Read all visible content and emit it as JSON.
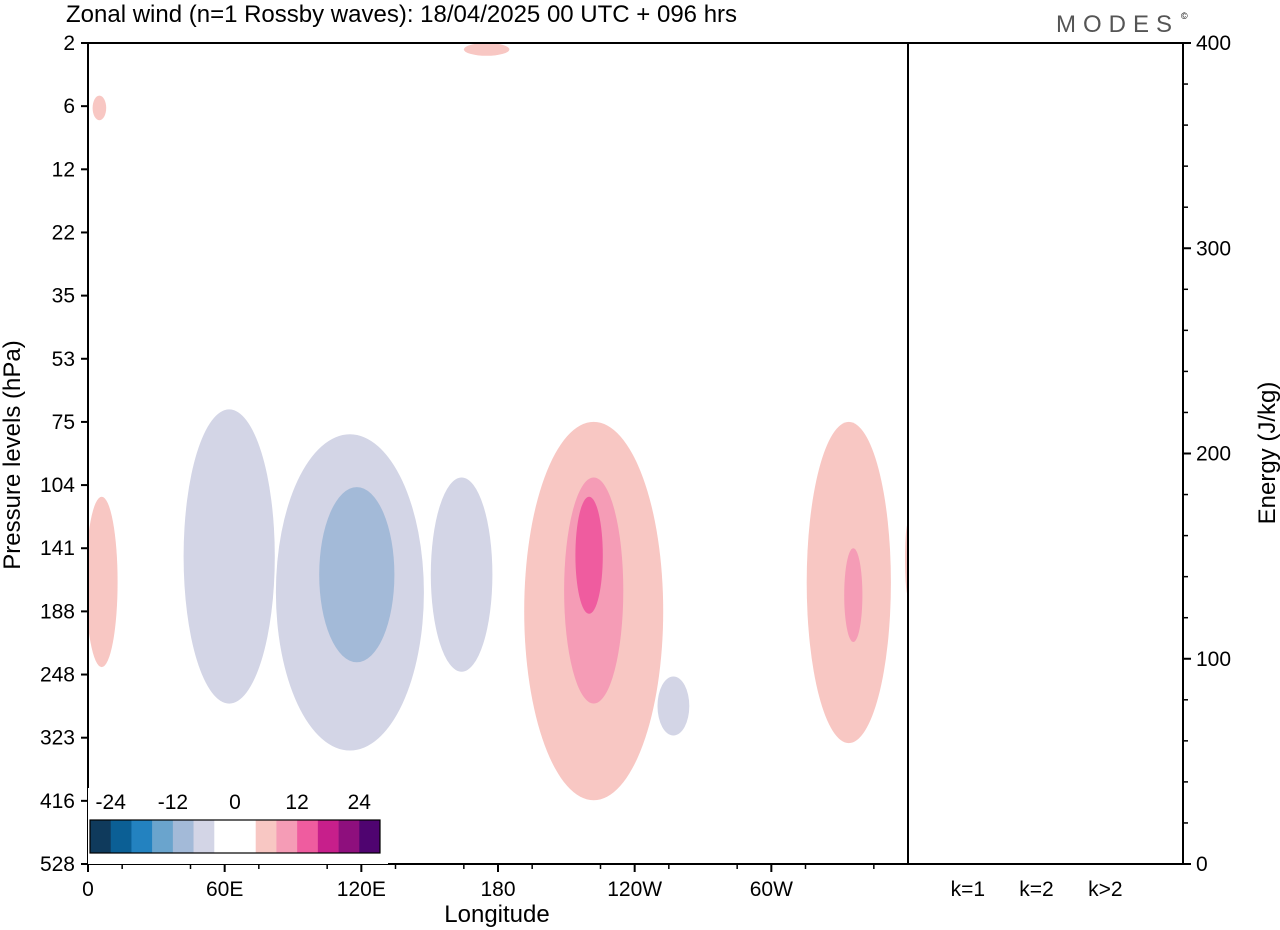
{
  "figure": {
    "title": "Zonal wind (n=1 Rossby waves):  18/04/2025  00 UTC  + 096 hrs",
    "logo_text": "MODES",
    "logo_mark": "©"
  },
  "colorbar": {
    "tick_labels": [
      "-24",
      "-12",
      "0",
      "12",
      "24"
    ],
    "colors": [
      "#0f3a5c",
      "#0b5f95",
      "#2382c0",
      "#6aa4cd",
      "#a3bad8",
      "#d3d5e6",
      "#ffffff",
      "#ffffff",
      "#f8c7c3",
      "#f59cb6",
      "#ef5c9f",
      "#c71f8b",
      "#8e0f7d",
      "#4f0470"
    ]
  },
  "chart_data": [
    {
      "type": "heatmap",
      "title": "Zonal wind (n=1 Rossby waves):  18/04/2025  00 UTC  + 096 hrs",
      "xlabel": "Longitude",
      "ylabel": "Pressure levels (hPa)",
      "x_ticks": [
        {
          "lon": 0,
          "label": "0"
        },
        {
          "lon": 60,
          "label": "60E"
        },
        {
          "lon": 120,
          "label": "120E"
        },
        {
          "lon": 180,
          "label": "180"
        },
        {
          "lon": 240,
          "label": "120W"
        },
        {
          "lon": 300,
          "label": "60W"
        }
      ],
      "xlim": [
        0,
        360
      ],
      "y_levels": [
        "2",
        "6",
        "12",
        "22",
        "35",
        "53",
        "75",
        "104",
        "141",
        "188",
        "248",
        "323",
        "416",
        "528"
      ],
      "y_scale": "level index (top = 2 hPa, bottom = 528 hPa)",
      "contour_levels": [
        -24,
        -20,
        -16,
        -12,
        -8,
        -4,
        0,
        4,
        8,
        12,
        16,
        20,
        24
      ],
      "regions": [
        {
          "sign": "pos",
          "level": 1,
          "center_lon": 6,
          "center_hpa": 160,
          "lon_span": [
            0,
            14
          ],
          "hpa_span": [
            110,
            240
          ]
        },
        {
          "sign": "pos",
          "level": 1,
          "center_lon": 5,
          "center_hpa": 5.5,
          "lon_span": [
            2,
            8
          ],
          "hpa_span": [
            5,
            7
          ]
        },
        {
          "sign": "pos",
          "level": 1,
          "center_lon": 175,
          "center_hpa": 2,
          "lon_span": [
            165,
            185
          ],
          "hpa_span": [
            2,
            2.5
          ]
        },
        {
          "sign": "neg",
          "level": 1,
          "center_lon": 62,
          "center_hpa": 150,
          "lon_span": [
            40,
            80
          ],
          "hpa_span": [
            70,
            280
          ]
        },
        {
          "sign": "neg",
          "level": 1,
          "center_lon": 115,
          "center_hpa": 150,
          "lon_span": [
            83,
            148
          ],
          "hpa_span": [
            80,
            340
          ]
        },
        {
          "sign": "neg",
          "level": 2,
          "center_lon": 118,
          "center_hpa": 150,
          "lon_span": [
            100,
            133
          ],
          "hpa_span": [
            105,
            235
          ]
        },
        {
          "sign": "neg",
          "level": 1,
          "center_lon": 164,
          "center_hpa": 160,
          "lon_span": [
            153,
            180
          ],
          "hpa_span": [
            100,
            245
          ]
        },
        {
          "sign": "neg",
          "level": 1,
          "center_lon": 257,
          "center_hpa": 290,
          "lon_span": [
            250,
            264
          ],
          "hpa_span": [
            250,
            320
          ]
        },
        {
          "sign": "pos",
          "level": 1,
          "center_lon": 222,
          "center_hpa": 170,
          "lon_span": [
            186,
            247
          ],
          "hpa_span": [
            75,
            415
          ]
        },
        {
          "sign": "pos",
          "level": 2,
          "center_lon": 222,
          "center_hpa": 170,
          "lon_span": [
            210,
            236
          ],
          "hpa_span": [
            100,
            280
          ]
        },
        {
          "sign": "pos",
          "level": 3,
          "center_lon": 220,
          "center_hpa": 140,
          "lon_span": [
            215,
            227
          ],
          "hpa_span": [
            110,
            190
          ]
        },
        {
          "sign": "pos",
          "level": 1,
          "center_lon": 334,
          "center_hpa": 190,
          "lon_span": [
            314,
            351
          ],
          "hpa_span": [
            75,
            330
          ]
        },
        {
          "sign": "pos",
          "level": 2,
          "center_lon": 336,
          "center_hpa": 190,
          "lon_span": [
            332,
            340
          ],
          "hpa_span": [
            141,
            215
          ]
        },
        {
          "sign": "pos",
          "level": 1,
          "center_lon": 360,
          "center_hpa": 150,
          "lon_span": [
            358,
            360
          ],
          "hpa_span": [
            125,
            175
          ]
        }
      ]
    },
    {
      "type": "bar",
      "ylabel": "Energy (J/kg)",
      "categories": [
        "k=1",
        "k=2",
        "k>2"
      ],
      "values": [
        0.4,
        0.3,
        0.4
      ],
      "ylim": [
        0,
        400
      ],
      "y_ticks": [
        0,
        100,
        200,
        300,
        400
      ]
    }
  ]
}
